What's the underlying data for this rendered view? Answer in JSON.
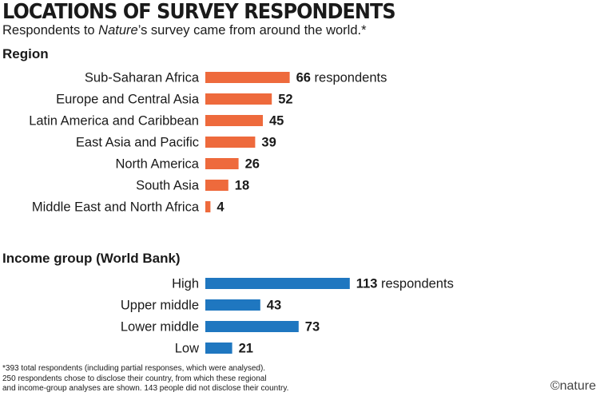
{
  "header": {
    "title": "LOCATIONS OF SURVEY RESPONDENTS",
    "subtitle_pre": "Respondents to ",
    "subtitle_em": "Nature",
    "subtitle_post": "’s survey came from around the world.*"
  },
  "colors": {
    "region": "#ee6a3c",
    "income": "#1f77c0"
  },
  "chart_data": [
    {
      "type": "bar",
      "orientation": "horizontal",
      "title": "Region",
      "categories": [
        "Sub-Saharan Africa",
        "Europe and Central Asia",
        "Latin America and Caribbean",
        "East Asia and Pacific",
        "North America",
        "South Asia",
        "Middle East and North Africa"
      ],
      "values": [
        66,
        52,
        45,
        39,
        26,
        18,
        4
      ],
      "unit_label": "respondents",
      "data_labels": true,
      "grid": false
    },
    {
      "type": "bar",
      "orientation": "horizontal",
      "title": "Income group (World Bank)",
      "categories": [
        "High",
        "Upper middle",
        "Lower middle",
        "Low"
      ],
      "values": [
        113,
        43,
        73,
        21
      ],
      "unit_label": "respondents",
      "data_labels": true,
      "grid": false
    }
  ],
  "footnote": {
    "lines": [
      "*393 total respondents (including partial responses, which were analysed).",
      "250 respondents chose to disclose their country, from which these regional",
      "and income-group analyses are shown. 143 people did not disclose their country."
    ]
  },
  "branding": {
    "logo": "©nature"
  }
}
